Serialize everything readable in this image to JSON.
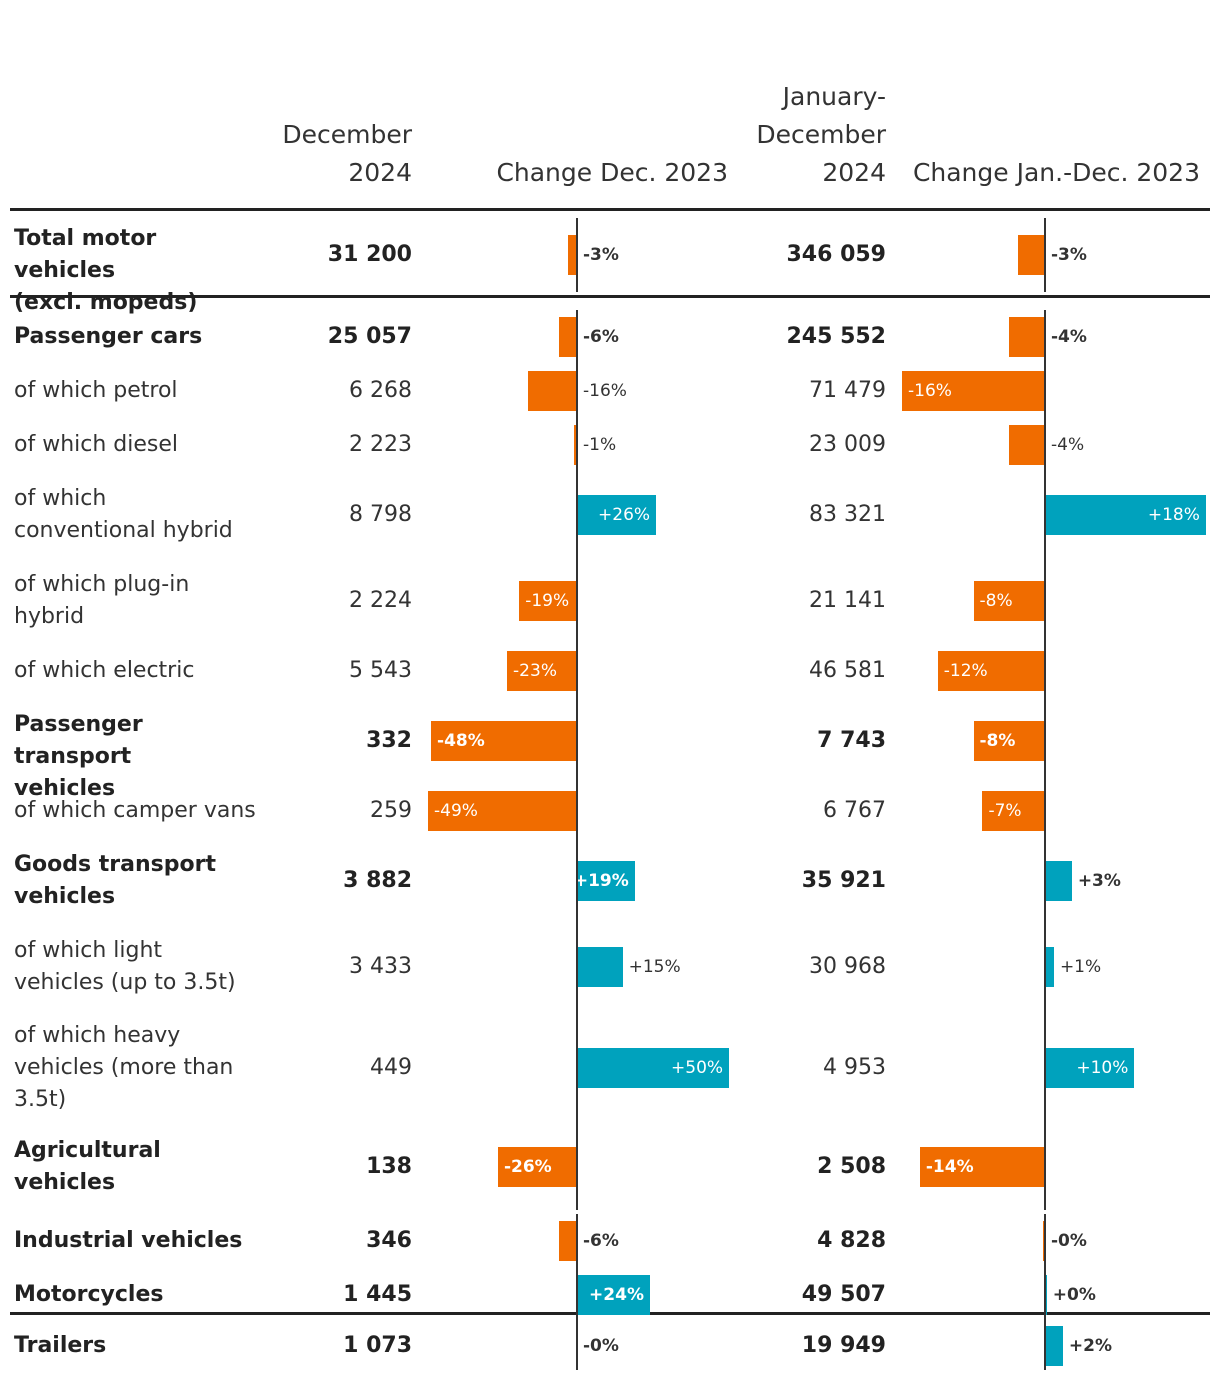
{
  "headers": {
    "december": [
      "December",
      "2024"
    ],
    "change_dec": "Change Dec. 2023",
    "january_december": [
      "January-",
      "December",
      "2024"
    ],
    "change_jan_dec": "Change Jan.-Dec. 2023"
  },
  "colors": {
    "negative": "#f06c00",
    "positive": "#00a2bd"
  },
  "chart_data": {
    "type": "table",
    "title": "",
    "columns": [
      "December 2024",
      "Change Dec. 2023",
      "January-December 2024",
      "Change Jan.-Dec. 2023"
    ],
    "scale": {
      "dec_change_range": [
        -50,
        50
      ],
      "jan_change_range": [
        -50,
        50
      ]
    },
    "rows": [
      {
        "label": [
          "Total motor vehicles",
          "(excl. mopeds)"
        ],
        "bold": true,
        "dec": "31 200",
        "dec_change": -3,
        "dec_change_label": "-3%",
        "jan": "346 059",
        "jan_change": -3,
        "jan_change_label": "-3%"
      },
      {
        "label": [
          "Passenger cars"
        ],
        "bold": true,
        "dec": "25 057",
        "dec_change": -6,
        "dec_change_label": "-6%",
        "jan": "245 552",
        "jan_change": -4,
        "jan_change_label": "-4%"
      },
      {
        "label": [
          "of which petrol"
        ],
        "bold": false,
        "dec": "6 268",
        "dec_change": -16,
        "dec_change_label": "-16%",
        "jan": "71 479",
        "jan_change": -16,
        "jan_change_label": "-16%"
      },
      {
        "label": [
          "of which diesel"
        ],
        "bold": false,
        "dec": "2 223",
        "dec_change": -1,
        "dec_change_label": "-1%",
        "jan": "23 009",
        "jan_change": -4,
        "jan_change_label": "-4%"
      },
      {
        "label": [
          "of which",
          "conventional hybrid"
        ],
        "bold": false,
        "dec": "8 798",
        "dec_change": 26,
        "dec_change_label": "+26%",
        "jan": "83 321",
        "jan_change": 18,
        "jan_change_label": "+18%"
      },
      {
        "label": [
          "of which plug-in",
          "hybrid"
        ],
        "bold": false,
        "dec": "2 224",
        "dec_change": -19,
        "dec_change_label": "-19%",
        "jan": "21 141",
        "jan_change": -8,
        "jan_change_label": "-8%"
      },
      {
        "label": [
          "of which electric"
        ],
        "bold": false,
        "dec": "5 543",
        "dec_change": -23,
        "dec_change_label": "-23%",
        "jan": "46 581",
        "jan_change": -12,
        "jan_change_label": "-12%"
      },
      {
        "label": [
          "Passenger transport",
          "vehicles"
        ],
        "bold": true,
        "dec": "332",
        "dec_change": -48,
        "dec_change_label": "-48%",
        "jan": "7 743",
        "jan_change": -8,
        "jan_change_label": "-8%"
      },
      {
        "label": [
          "of which camper vans"
        ],
        "bold": false,
        "dec": "259",
        "dec_change": -49,
        "dec_change_label": "-49%",
        "jan": "6 767",
        "jan_change": -7,
        "jan_change_label": "-7%"
      },
      {
        "label": [
          "Goods transport",
          "vehicles"
        ],
        "bold": true,
        "dec": "3 882",
        "dec_change": 19,
        "dec_change_label": "+19%",
        "jan": "35 921",
        "jan_change": 3,
        "jan_change_label": "+3%"
      },
      {
        "label": [
          "of which light",
          "vehicles (up to 3.5t)"
        ],
        "bold": false,
        "dec": "3 433",
        "dec_change": 15,
        "dec_change_label": "+15%",
        "jan": "30 968",
        "jan_change": 1,
        "jan_change_label": "+1%"
      },
      {
        "label": [
          "of which heavy",
          "vehicles (more than",
          "3.5t)"
        ],
        "bold": false,
        "dec": "449",
        "dec_change": 50,
        "dec_change_label": "+50%",
        "jan": "4 953",
        "jan_change": 10,
        "jan_change_label": "+10%"
      },
      {
        "label": [
          "Agricultural",
          "vehicles"
        ],
        "bold": true,
        "dec": "138",
        "dec_change": -26,
        "dec_change_label": "-26%",
        "jan": "2 508",
        "jan_change": -14,
        "jan_change_label": "-14%"
      },
      {
        "label": [
          "Industrial vehicles"
        ],
        "bold": true,
        "dec": "346",
        "dec_change": -6,
        "dec_change_label": "-6%",
        "jan": "4 828",
        "jan_change": -0.2,
        "jan_change_label": "-0%"
      },
      {
        "label": [
          "Motorcycles"
        ],
        "bold": true,
        "dec": "1 445",
        "dec_change": 24,
        "dec_change_label": "+24%",
        "jan": "49 507",
        "jan_change": 0.2,
        "jan_change_label": "+0%"
      },
      {
        "label": [
          "Trailers"
        ],
        "bold": true,
        "dec": "1 073",
        "dec_change": -0.2,
        "dec_change_label": "-0%",
        "jan": "19 949",
        "jan_change": 2,
        "jan_change_label": "+2%"
      }
    ]
  }
}
